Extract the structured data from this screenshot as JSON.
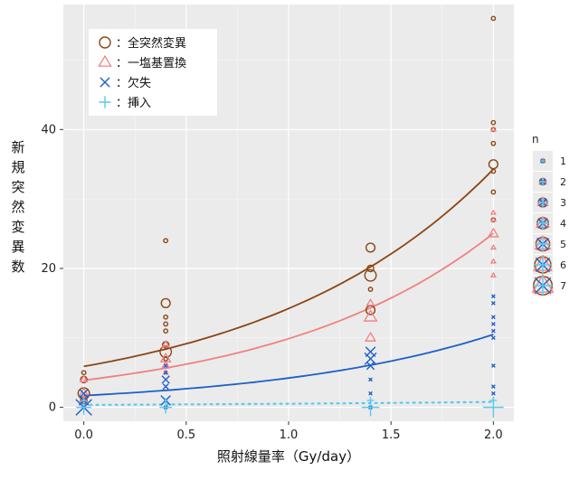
{
  "chart_data": {
    "type": "scatter",
    "xlabel": "照射線量率（Gy/day）",
    "ylabel": "新規突然変異数",
    "xlim": [
      -0.1,
      2.1
    ],
    "ylim": [
      -2,
      58
    ],
    "x_ticks": [
      "0.0",
      "0.5",
      "1.0",
      "1.5",
      "2.0"
    ],
    "y_ticks": [
      "0",
      "20",
      "40"
    ],
    "grid": true,
    "legend_position": "top-left",
    "legend_labels": [
      "：全突然変異",
      "：一塩基置換",
      "：欠失",
      "：挿入"
    ],
    "size_legend": {
      "title": "n",
      "labels": [
        "1",
        "2",
        "3",
        "4",
        "5",
        "6",
        "7"
      ]
    },
    "colors": {
      "全突然変異": "#8B4513",
      "一塩基置換": "#F08080",
      "欠失": "#1E5FC8",
      "挿入": "#5BC8F0"
    },
    "series": [
      {
        "name": "全突然変異",
        "marker": "circle",
        "points": [
          {
            "x": 0.0,
            "y": 5,
            "n": 1
          },
          {
            "x": 0.0,
            "y": 4,
            "n": 2
          },
          {
            "x": 0.0,
            "y": 2,
            "n": 4
          },
          {
            "x": 0.0,
            "y": 1,
            "n": 2
          },
          {
            "x": 0.4,
            "y": 24,
            "n": 1
          },
          {
            "x": 0.4,
            "y": 15,
            "n": 3
          },
          {
            "x": 0.4,
            "y": 13,
            "n": 1
          },
          {
            "x": 0.4,
            "y": 12,
            "n": 1
          },
          {
            "x": 0.4,
            "y": 11,
            "n": 1
          },
          {
            "x": 0.4,
            "y": 9,
            "n": 2
          },
          {
            "x": 0.4,
            "y": 8,
            "n": 4
          },
          {
            "x": 0.4,
            "y": 7,
            "n": 1
          },
          {
            "x": 1.4,
            "y": 23,
            "n": 3
          },
          {
            "x": 1.4,
            "y": 20,
            "n": 2
          },
          {
            "x": 1.4,
            "y": 19,
            "n": 4
          },
          {
            "x": 1.4,
            "y": 17,
            "n": 1
          },
          {
            "x": 1.4,
            "y": 14,
            "n": 3
          },
          {
            "x": 2.0,
            "y": 56,
            "n": 1
          },
          {
            "x": 2.0,
            "y": 41,
            "n": 1
          },
          {
            "x": 2.0,
            "y": 40,
            "n": 1
          },
          {
            "x": 2.0,
            "y": 38,
            "n": 1
          },
          {
            "x": 2.0,
            "y": 35,
            "n": 3
          },
          {
            "x": 2.0,
            "y": 34,
            "n": 1
          },
          {
            "x": 2.0,
            "y": 31,
            "n": 1
          },
          {
            "x": 2.0,
            "y": 27,
            "n": 1
          }
        ],
        "fit": {
          "a": 5.9,
          "b": 0.88
        }
      },
      {
        "name": "一塩基置換",
        "marker": "triangle",
        "points": [
          {
            "x": 0.0,
            "y": 4,
            "n": 2
          },
          {
            "x": 0.0,
            "y": 2,
            "n": 3
          },
          {
            "x": 0.0,
            "y": 1,
            "n": 2
          },
          {
            "x": 0.4,
            "y": 9,
            "n": 2
          },
          {
            "x": 0.4,
            "y": 7,
            "n": 3
          },
          {
            "x": 0.4,
            "y": 6,
            "n": 2
          },
          {
            "x": 0.4,
            "y": 5,
            "n": 1
          },
          {
            "x": 1.4,
            "y": 15,
            "n": 2
          },
          {
            "x": 1.4,
            "y": 13,
            "n": 4
          },
          {
            "x": 1.4,
            "y": 10,
            "n": 3
          },
          {
            "x": 2.0,
            "y": 40,
            "n": 1
          },
          {
            "x": 2.0,
            "y": 28,
            "n": 1
          },
          {
            "x": 2.0,
            "y": 27,
            "n": 1
          },
          {
            "x": 2.0,
            "y": 25,
            "n": 3
          },
          {
            "x": 2.0,
            "y": 23,
            "n": 1
          },
          {
            "x": 2.0,
            "y": 21,
            "n": 1
          },
          {
            "x": 2.0,
            "y": 19,
            "n": 1
          }
        ],
        "fit": {
          "a": 3.9,
          "b": 0.93
        }
      },
      {
        "name": "欠失",
        "marker": "x",
        "points": [
          {
            "x": 0.0,
            "y": 2,
            "n": 3
          },
          {
            "x": 0.0,
            "y": 1,
            "n": 4
          },
          {
            "x": 0.0,
            "y": 0,
            "n": 7
          },
          {
            "x": 0.4,
            "y": 6,
            "n": 1
          },
          {
            "x": 0.4,
            "y": 5,
            "n": 1
          },
          {
            "x": 0.4,
            "y": 4,
            "n": 3
          },
          {
            "x": 0.4,
            "y": 3,
            "n": 2
          },
          {
            "x": 0.4,
            "y": 1,
            "n": 4
          },
          {
            "x": 0.4,
            "y": 0,
            "n": 1
          },
          {
            "x": 1.4,
            "y": 8,
            "n": 4
          },
          {
            "x": 1.4,
            "y": 7,
            "n": 5
          },
          {
            "x": 1.4,
            "y": 6,
            "n": 3
          },
          {
            "x": 1.4,
            "y": 4,
            "n": 1
          },
          {
            "x": 1.4,
            "y": 2,
            "n": 1
          },
          {
            "x": 1.4,
            "y": 0,
            "n": 1
          },
          {
            "x": 2.0,
            "y": 16,
            "n": 1
          },
          {
            "x": 2.0,
            "y": 15,
            "n": 1
          },
          {
            "x": 2.0,
            "y": 13,
            "n": 1
          },
          {
            "x": 2.0,
            "y": 12,
            "n": 1
          },
          {
            "x": 2.0,
            "y": 11,
            "n": 1
          },
          {
            "x": 2.0,
            "y": 10,
            "n": 1
          },
          {
            "x": 2.0,
            "y": 6,
            "n": 1
          },
          {
            "x": 2.0,
            "y": 3,
            "n": 1
          },
          {
            "x": 2.0,
            "y": 2,
            "n": 1
          }
        ],
        "fit": {
          "a": 1.7,
          "b": 0.91
        }
      },
      {
        "name": "挿入",
        "marker": "plus",
        "points": [
          {
            "x": 0.0,
            "y": 0,
            "n": 5
          },
          {
            "x": 0.0,
            "y": 1,
            "n": 1
          },
          {
            "x": 0.4,
            "y": 0,
            "n": 4
          },
          {
            "x": 0.4,
            "y": 1,
            "n": 1
          },
          {
            "x": 1.4,
            "y": 0,
            "n": 6
          },
          {
            "x": 1.4,
            "y": 1,
            "n": 2
          },
          {
            "x": 2.0,
            "y": 0,
            "n": 7
          },
          {
            "x": 2.0,
            "y": 1,
            "n": 2
          }
        ],
        "fit": {
          "a": 0.35,
          "b": 0.4
        }
      }
    ]
  }
}
